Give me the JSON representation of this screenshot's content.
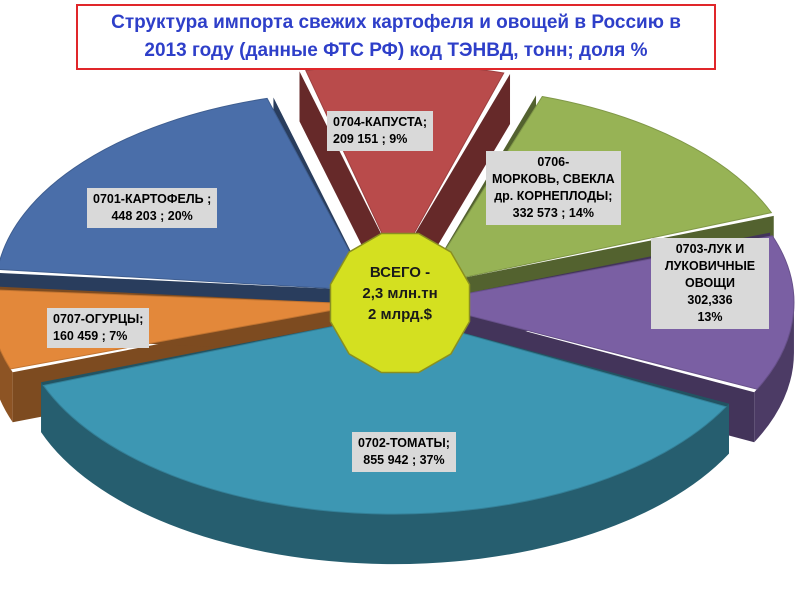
{
  "title": {
    "line1": "Структура импорта свежих картофеля и овощей в Россию в",
    "line2": "2013 году (данные ФТС РФ) код ТЭНВД, тонн; доля %"
  },
  "center": {
    "line1": "ВСЕГО -",
    "line2": "2,3 млн.тн",
    "line3": "2 млрд.$"
  },
  "colors": {
    "title_border": "#e0262a",
    "title_text": "#2e3fc9",
    "center_fill": "#d4e020",
    "label_bg": "#d9d9d9"
  },
  "chart_data": {
    "type": "pie",
    "style": "3d-exploded",
    "slices": [
      {
        "code": "0701",
        "name": "0701-КАРТОФЕЛЬ",
        "tons": 448203,
        "percent": 20,
        "color": "#4a6ea9",
        "label_lines": [
          "0701-КАРТОФЕЛЬ ;",
          "448 203   ; 20%"
        ]
      },
      {
        "code": "0704",
        "name": "0704-КАПУСТА",
        "tons": 209151,
        "percent": 9,
        "color": "#b94b4b",
        "label_lines": [
          "0704-КАПУСТА;",
          "209 151   ; 9%"
        ]
      },
      {
        "code": "0706",
        "name": "0706-МОРКОВЬ, СВЕКЛА др. КОРНЕПЛОДЫ",
        "tons": 332573,
        "percent": 14,
        "color": "#97b355",
        "label_lines": [
          "0706-",
          "МОРКОВЬ, СВЕКЛА",
          "др. КОРНЕПЛОДЫ;",
          "332 573   ; 14%"
        ]
      },
      {
        "code": "0703",
        "name": "0703-ЛУК И ЛУКОВИЧНЫЕ ОВОЩИ",
        "tons": 302336,
        "percent": 13,
        "color": "#7a5fa3",
        "label_lines": [
          "0703-ЛУК  И",
          "ЛУКОВИЧНЫЕ",
          "ОВОЩИ",
          "302,336",
          "13%"
        ]
      },
      {
        "code": "0702",
        "name": "0702-ТОМАТЫ",
        "tons": 855942,
        "percent": 37,
        "color": "#3d97b3",
        "label_lines": [
          "0702-ТОМАТЫ;",
          "855 942   ; 37%"
        ]
      },
      {
        "code": "0707",
        "name": "0707-ОГУРЦЫ",
        "tons": 160459,
        "percent": 7,
        "color": "#e3883a",
        "label_lines": [
          "0707-ОГУРЦЫ;",
          "160 459   ; 7%"
        ]
      }
    ]
  }
}
